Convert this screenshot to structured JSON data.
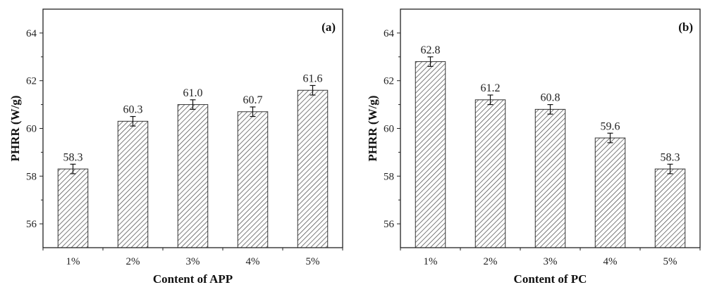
{
  "chart_data": [
    {
      "type": "bar",
      "panel_label": "(a)",
      "title": "",
      "xlabel": "Content of APP",
      "ylabel": "PHRR (W/g)",
      "categories": [
        "1%",
        "2%",
        "3%",
        "4%",
        "5%"
      ],
      "values": [
        58.3,
        60.3,
        61.0,
        60.7,
        61.6
      ],
      "value_labels": [
        "58.3",
        "60.3",
        "61.0",
        "60.7",
        "61.6"
      ],
      "errors": [
        0.2,
        0.2,
        0.2,
        0.2,
        0.2
      ],
      "ylim": [
        55,
        65
      ],
      "yticks": [
        56,
        58,
        60,
        62,
        64
      ],
      "grid": false
    },
    {
      "type": "bar",
      "panel_label": "(b)",
      "title": "",
      "xlabel": "Content of PC",
      "ylabel": "PHRR (W/g)",
      "categories": [
        "1%",
        "2%",
        "3%",
        "4%",
        "5%"
      ],
      "values": [
        62.8,
        61.2,
        60.8,
        59.6,
        58.3
      ],
      "value_labels": [
        "62.8",
        "61.2",
        "60.8",
        "59.6",
        "58.3"
      ],
      "errors": [
        0.2,
        0.2,
        0.2,
        0.2,
        0.2
      ],
      "ylim": [
        55,
        65
      ],
      "yticks": [
        56,
        58,
        60,
        62,
        64
      ],
      "grid": false
    }
  ],
  "colors": {
    "axis": "#222222",
    "bar_edge": "#333333",
    "hatch": "#444444",
    "bar_fill": "#ffffff"
  }
}
